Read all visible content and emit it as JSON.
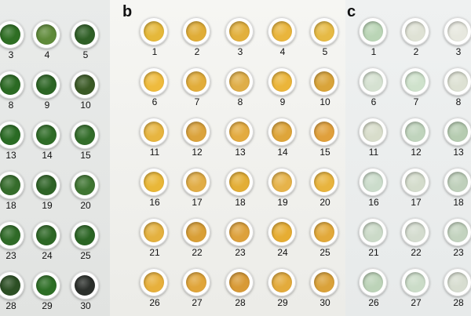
{
  "panels": [
    {
      "id": "a",
      "label": "",
      "samples": [
        {
          "number": "3",
          "color": "#2e6e23"
        },
        {
          "number": "4",
          "color": "#5f8a3a"
        },
        {
          "number": "5",
          "color": "#2f5f26"
        },
        {
          "number": "8",
          "color": "#2b6a23"
        },
        {
          "number": "9",
          "color": "#2c6524"
        },
        {
          "number": "10",
          "color": "#3b5a26"
        },
        {
          "number": "13",
          "color": "#2a6b24"
        },
        {
          "number": "14",
          "color": "#2f6c27"
        },
        {
          "number": "15",
          "color": "#336d2a"
        },
        {
          "number": "18",
          "color": "#356c2b"
        },
        {
          "number": "19",
          "color": "#2e6326"
        },
        {
          "number": "20",
          "color": "#3f7532"
        },
        {
          "number": "23",
          "color": "#2f6a27"
        },
        {
          "number": "24",
          "color": "#2d6725"
        },
        {
          "number": "25",
          "color": "#2b6524"
        },
        {
          "number": "28",
          "color": "#2c4f24"
        },
        {
          "number": "29",
          "color": "#2d6e25"
        },
        {
          "number": "30",
          "color": "#2b2f2b"
        }
      ]
    },
    {
      "id": "b",
      "label": "b",
      "samples": [
        {
          "number": "1",
          "color": "#e5b83a"
        },
        {
          "number": "2",
          "color": "#e0ad37"
        },
        {
          "number": "3",
          "color": "#e2b03d"
        },
        {
          "number": "4",
          "color": "#e9b53c"
        },
        {
          "number": "5",
          "color": "#e6ba45"
        },
        {
          "number": "6",
          "color": "#efbb3d"
        },
        {
          "number": "7",
          "color": "#e2ad3a"
        },
        {
          "number": "8",
          "color": "#dfae48"
        },
        {
          "number": "9",
          "color": "#ebb53a"
        },
        {
          "number": "10",
          "color": "#d9a43a"
        },
        {
          "number": "11",
          "color": "#e7b540"
        },
        {
          "number": "12",
          "color": "#dba33c"
        },
        {
          "number": "13",
          "color": "#e3ab40"
        },
        {
          "number": "14",
          "color": "#dea53a"
        },
        {
          "number": "15",
          "color": "#e0a03c"
        },
        {
          "number": "16",
          "color": "#e9b738"
        },
        {
          "number": "17",
          "color": "#e1ad46"
        },
        {
          "number": "18",
          "color": "#e3ae36"
        },
        {
          "number": "19",
          "color": "#e6b34a"
        },
        {
          "number": "20",
          "color": "#e8b43e"
        },
        {
          "number": "21",
          "color": "#e4b13f"
        },
        {
          "number": "22",
          "color": "#d99f36"
        },
        {
          "number": "23",
          "color": "#dda13c"
        },
        {
          "number": "24",
          "color": "#e6ad33"
        },
        {
          "number": "25",
          "color": "#e2a93a"
        },
        {
          "number": "26",
          "color": "#e7b03c"
        },
        {
          "number": "27",
          "color": "#e0a53a"
        },
        {
          "number": "28",
          "color": "#d89a36"
        },
        {
          "number": "29",
          "color": "#e3ab3c"
        },
        {
          "number": "30",
          "color": "#daa23a"
        }
      ]
    },
    {
      "id": "c",
      "label": "c",
      "samples": [
        {
          "number": "1",
          "color": "#bad5b6"
        },
        {
          "number": "2",
          "color": "#dfe2d5"
        },
        {
          "number": "3",
          "color": "#e7e8df"
        },
        {
          "number": "6",
          "color": "#d5e1d1"
        },
        {
          "number": "7",
          "color": "#cfe2cc"
        },
        {
          "number": "8",
          "color": "#dde1d3"
        },
        {
          "number": "11",
          "color": "#d8ddcb"
        },
        {
          "number": "12",
          "color": "#c0d4bd"
        },
        {
          "number": "13",
          "color": "#b6ccb1"
        },
        {
          "number": "16",
          "color": "#cbdccb"
        },
        {
          "number": "17",
          "color": "#d4dccc"
        },
        {
          "number": "18",
          "color": "#bfd0bb"
        },
        {
          "number": "21",
          "color": "#cbdac8"
        },
        {
          "number": "22",
          "color": "#d4dccf"
        },
        {
          "number": "23",
          "color": "#c3d3bf"
        },
        {
          "number": "26",
          "color": "#bcd3b8"
        },
        {
          "number": "27",
          "color": "#cbdcc8"
        },
        {
          "number": "28",
          "color": "#d7ddd0"
        }
      ]
    }
  ]
}
